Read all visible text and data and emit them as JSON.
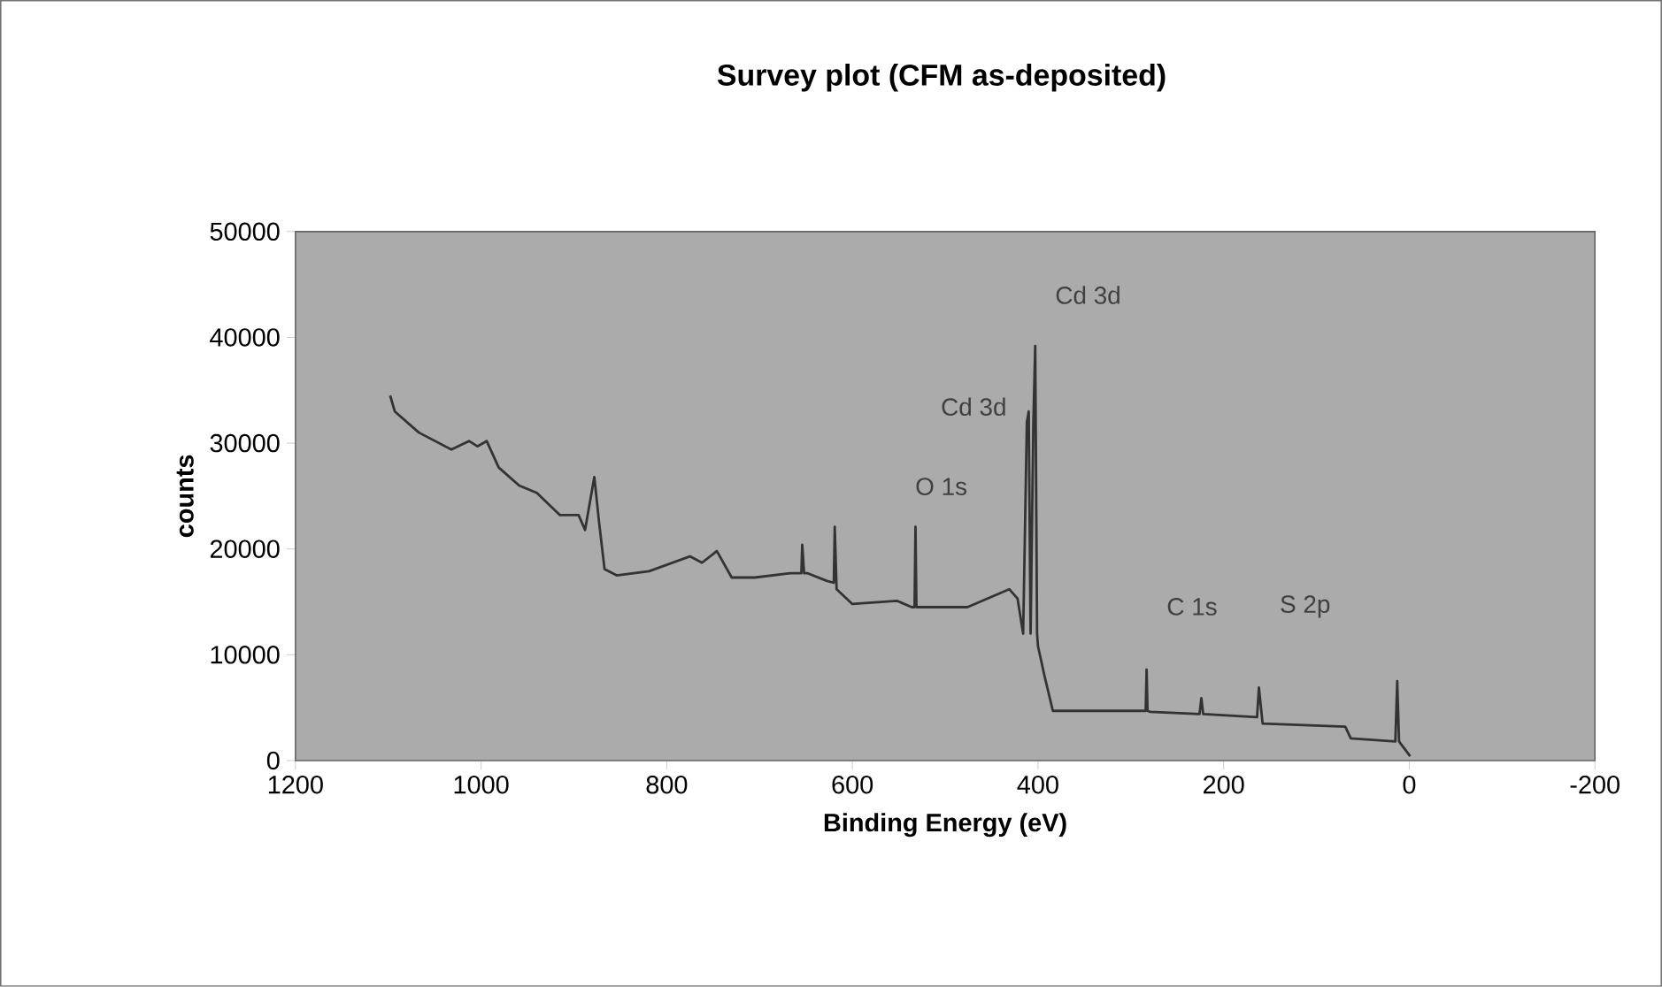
{
  "chart_data": {
    "type": "line",
    "title": "Survey plot (CFM as-deposited)",
    "xlabel": "Binding Energy (eV)",
    "ylabel": "counts",
    "xlim": [
      1200,
      -200
    ],
    "xticks": [
      1200,
      1000,
      800,
      600,
      400,
      200,
      0,
      -200
    ],
    "ylim": [
      0,
      50000
    ],
    "yticks": [
      0,
      10000,
      20000,
      30000,
      40000,
      50000
    ],
    "grid": false,
    "marker": "none",
    "line_style": "solid",
    "series": [
      {
        "color": "#333333",
        "x": [
          1098,
          1093,
          1067,
          1032,
          1013,
          1004,
          994,
          981,
          959,
          940,
          915,
          895,
          888,
          878,
          873,
          867,
          854,
          819,
          775,
          762,
          746,
          730,
          705,
          667,
          655,
          654,
          652,
          648,
          628,
          620,
          619,
          617,
          600,
          552,
          536,
          533,
          532,
          531,
          476,
          431,
          422,
          416,
          412,
          410,
          408,
          405,
          403,
          401,
          400,
          393,
          384,
          298,
          284,
          283,
          282,
          279,
          226,
          224,
          222,
          164,
          162,
          158,
          69,
          63,
          15,
          13,
          11,
          -1
        ],
        "values": [
          34500,
          33000,
          31000,
          29400,
          30200,
          29700,
          30200,
          27700,
          26000,
          25300,
          23200,
          23200,
          21800,
          26800,
          22600,
          18100,
          17500,
          17900,
          19300,
          18700,
          19800,
          17300,
          17300,
          17700,
          17700,
          20400,
          17700,
          17700,
          17000,
          16800,
          22100,
          16200,
          14800,
          15100,
          14500,
          14500,
          22100,
          14500,
          14500,
          16200,
          15300,
          12000,
          32000,
          33000,
          12000,
          32000,
          39200,
          12000,
          10800,
          8000,
          4700,
          4700,
          4700,
          8600,
          4700,
          4600,
          4400,
          5900,
          4400,
          4100,
          6900,
          3500,
          3200,
          2100,
          1800,
          7500,
          1800,
          400
        ]
      }
    ],
    "annotations": [
      "Cd 3d",
      "Cd 3d",
      "O 1s",
      "C 1s",
      "S 2p"
    ]
  }
}
